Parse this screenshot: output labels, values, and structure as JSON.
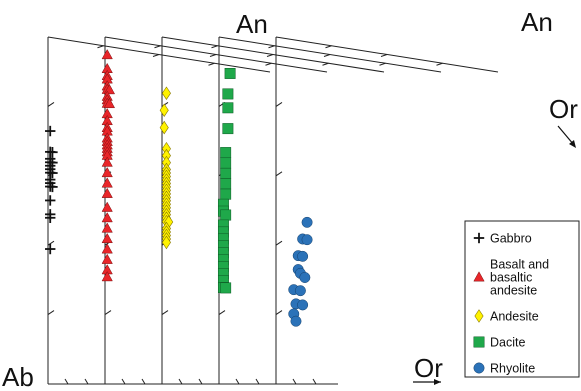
{
  "chart_data": {
    "type": "scatter",
    "subtype": "stacked ternary diagrams (An-Ab-Or feldspar)",
    "corner_labels": {
      "apex": "An",
      "left": "Ab",
      "right": "Or",
      "apex_right_panel": "An",
      "right_side_label": "Or",
      "bottom_arrow_label": "Or"
    },
    "legend_placement": "bottom-right",
    "legend": [
      {
        "key": "gabbro",
        "label_lines": [
          "Gabbro"
        ],
        "marker": "plus",
        "color": "#111111"
      },
      {
        "key": "basalt",
        "label_lines": [
          "Basalt and",
          "basaltic",
          "andesite"
        ],
        "marker": "triangle",
        "color": "#e8262a"
      },
      {
        "key": "andesite",
        "label_lines": [
          "Andesite"
        ],
        "marker": "diamond",
        "color": "#fff200"
      },
      {
        "key": "dacite",
        "label_lines": [
          "Dacite"
        ],
        "marker": "square",
        "color": "#1fa84a"
      },
      {
        "key": "rhyolite",
        "label_lines": [
          "Rhyolite"
        ],
        "marker": "circle",
        "color": "#2b72b8"
      }
    ],
    "series": [
      {
        "name": "Gabbro",
        "panel": 0,
        "marker": "plus",
        "color": "#111111",
        "points": [
          [
            0.56,
            0.01
          ],
          [
            0.57,
            0.01
          ],
          [
            0.58,
            0.01
          ],
          [
            0.6,
            0.01
          ],
          [
            0.61,
            0.01
          ],
          [
            0.62,
            0.01
          ],
          [
            0.63,
            0.01
          ],
          [
            0.64,
            0.01
          ],
          [
            0.66,
            0.01
          ],
          [
            0.55,
            0.02
          ],
          [
            0.59,
            0.02
          ],
          [
            0.62,
            0.02
          ],
          [
            0.65,
            0.02
          ],
          [
            0.52,
            0.01
          ],
          [
            0.48,
            0.01
          ],
          [
            0.47,
            0.01
          ],
          [
            0.38,
            0.01
          ],
          [
            0.72,
            0.01
          ]
        ]
      },
      {
        "name": "Basalt and basaltic andesite",
        "panel": 1,
        "marker": "triangle",
        "color": "#e8262a",
        "points": [
          [
            0.94,
            0.01
          ],
          [
            0.9,
            0.01
          ],
          [
            0.88,
            0.01
          ],
          [
            0.87,
            0.01
          ],
          [
            0.85,
            0.01
          ],
          [
            0.84,
            0.01
          ],
          [
            0.83,
            0.02
          ],
          [
            0.82,
            0.01
          ],
          [
            0.81,
            0.01
          ],
          [
            0.8,
            0.01
          ],
          [
            0.79,
            0.02
          ],
          [
            0.77,
            0.01
          ],
          [
            0.75,
            0.01
          ],
          [
            0.73,
            0.01
          ],
          [
            0.72,
            0.01
          ],
          [
            0.7,
            0.01
          ],
          [
            0.69,
            0.01
          ],
          [
            0.68,
            0.01
          ],
          [
            0.67,
            0.01
          ],
          [
            0.66,
            0.01
          ],
          [
            0.65,
            0.01
          ],
          [
            0.63,
            0.01
          ],
          [
            0.6,
            0.01
          ],
          [
            0.57,
            0.01
          ],
          [
            0.54,
            0.01
          ],
          [
            0.5,
            0.01
          ],
          [
            0.47,
            0.01
          ],
          [
            0.44,
            0.01
          ],
          [
            0.41,
            0.01
          ],
          [
            0.38,
            0.01
          ],
          [
            0.35,
            0.01
          ],
          [
            0.32,
            0.01
          ],
          [
            0.3,
            0.01
          ]
        ]
      },
      {
        "name": "Andesite",
        "panel": 2,
        "marker": "diamond",
        "color": "#fff200",
        "points": [
          [
            0.82,
            0.02
          ],
          [
            0.78,
            0.01
          ],
          [
            0.73,
            0.01
          ],
          [
            0.66,
            0.02
          ],
          [
            0.64,
            0.02
          ],
          [
            0.62,
            0.02
          ],
          [
            0.6,
            0.02
          ],
          [
            0.59,
            0.02
          ],
          [
            0.58,
            0.02
          ],
          [
            0.57,
            0.02
          ],
          [
            0.56,
            0.02
          ],
          [
            0.55,
            0.02
          ],
          [
            0.54,
            0.02
          ],
          [
            0.53,
            0.02
          ],
          [
            0.52,
            0.02
          ],
          [
            0.51,
            0.02
          ],
          [
            0.5,
            0.02
          ],
          [
            0.49,
            0.02
          ],
          [
            0.48,
            0.02
          ],
          [
            0.47,
            0.02
          ],
          [
            0.46,
            0.02
          ],
          [
            0.45,
            0.02
          ],
          [
            0.44,
            0.03
          ],
          [
            0.43,
            0.02
          ],
          [
            0.42,
            0.02
          ],
          [
            0.41,
            0.02
          ],
          [
            0.4,
            0.02
          ],
          [
            0.39,
            0.02
          ]
        ]
      },
      {
        "name": "Dacite",
        "panel": 3,
        "marker": "square",
        "color": "#1fa84a",
        "points": [
          [
            0.85,
            0.05
          ],
          [
            0.8,
            0.04
          ],
          [
            0.76,
            0.04
          ],
          [
            0.7,
            0.04
          ],
          [
            0.64,
            0.03
          ],
          [
            0.61,
            0.03
          ],
          [
            0.58,
            0.03
          ],
          [
            0.55,
            0.03
          ],
          [
            0.52,
            0.03
          ],
          [
            0.5,
            0.02
          ],
          [
            0.48,
            0.02
          ],
          [
            0.46,
            0.03
          ],
          [
            0.44,
            0.02
          ],
          [
            0.42,
            0.02
          ],
          [
            0.4,
            0.02
          ],
          [
            0.38,
            0.02
          ],
          [
            0.36,
            0.02
          ],
          [
            0.34,
            0.02
          ],
          [
            0.32,
            0.02
          ],
          [
            0.3,
            0.02
          ],
          [
            0.28,
            0.02
          ],
          [
            0.26,
            0.02
          ],
          [
            0.25,
            0.03
          ]
        ]
      },
      {
        "name": "Rhyolite",
        "panel": 4,
        "marker": "circle",
        "color": "#2b72b8",
        "points": [
          [
            0.34,
            0.14
          ],
          [
            0.31,
            0.12
          ],
          [
            0.29,
            0.14
          ],
          [
            0.28,
            0.1
          ],
          [
            0.26,
            0.12
          ],
          [
            0.24,
            0.1
          ],
          [
            0.22,
            0.11
          ],
          [
            0.2,
            0.08
          ],
          [
            0.19,
            0.13
          ],
          [
            0.17,
            0.11
          ],
          [
            0.15,
            0.09
          ],
          [
            0.13,
            0.08
          ],
          [
            0.12,
            0.12
          ],
          [
            0.1,
            0.09
          ]
        ]
      }
    ]
  }
}
